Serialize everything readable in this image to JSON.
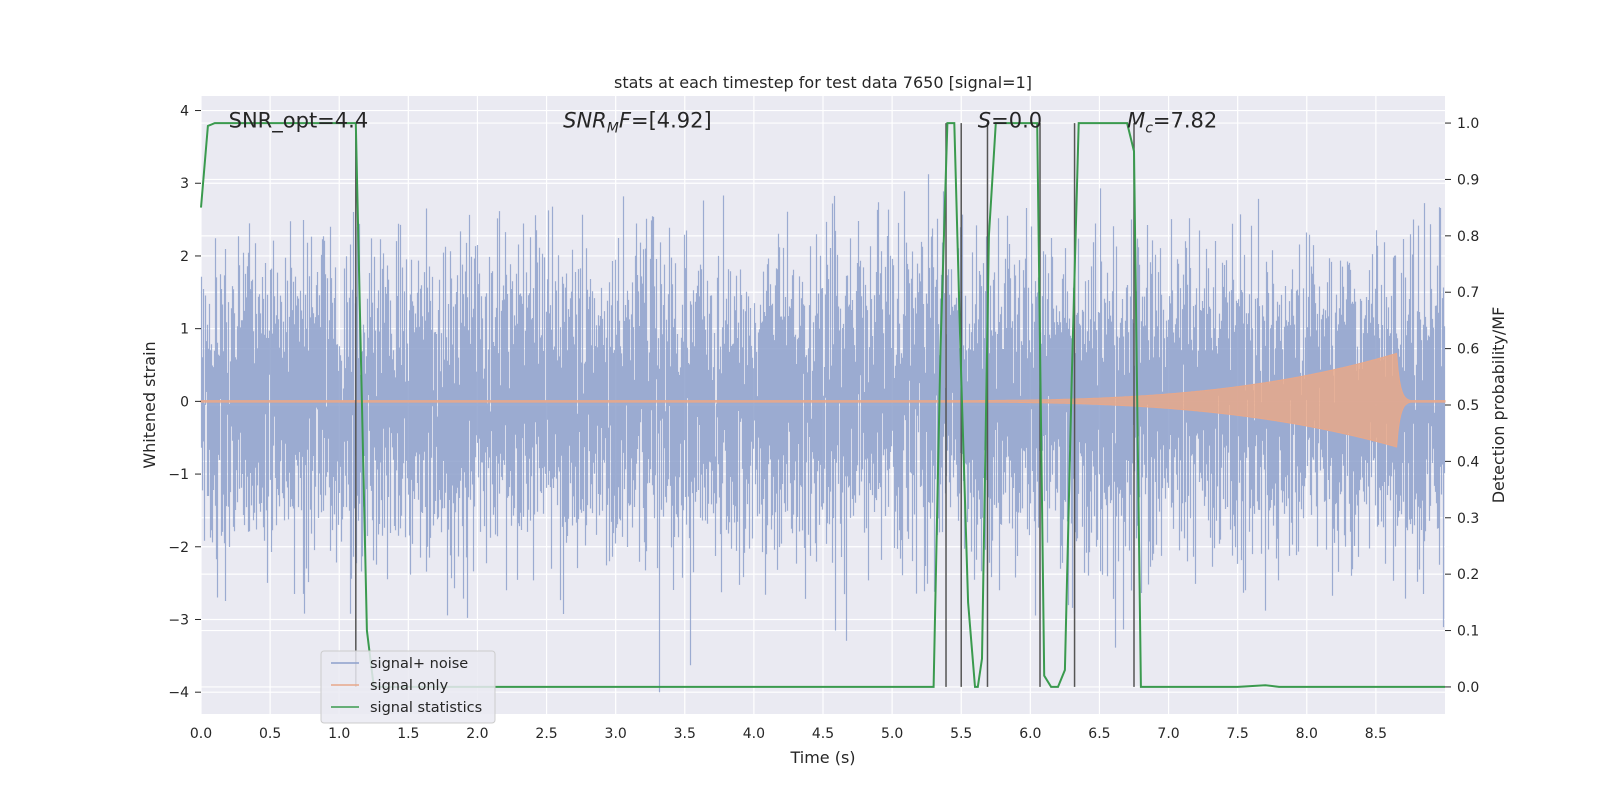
{
  "chart_data": {
    "type": "line",
    "title": "stats at each timestep for test data 7650 [signal=1]",
    "xlabel": "Time (s)",
    "ylabel_left": "Whitened strain",
    "ylabel_right": "Detection probability/MF",
    "xlim": [
      0.0,
      9.0
    ],
    "ylim_left": [
      -4.3,
      4.2
    ],
    "ylim_right": [
      -0.048,
      1.048
    ],
    "x_ticks": [
      0.0,
      0.5,
      1.0,
      1.5,
      2.0,
      2.5,
      3.0,
      3.5,
      4.0,
      4.5,
      5.0,
      5.5,
      6.0,
      6.5,
      7.0,
      7.5,
      8.0,
      8.5
    ],
    "x_tick_labels": [
      "0.0",
      "0.5",
      "1.0",
      "1.5",
      "2.0",
      "2.5",
      "3.0",
      "3.5",
      "4.0",
      "4.5",
      "5.0",
      "5.5",
      "6.0",
      "6.5",
      "7.0",
      "7.5",
      "8.0",
      "8.5"
    ],
    "y_left_ticks": [
      -4,
      -3,
      -2,
      -1,
      0,
      1,
      2,
      3,
      4
    ],
    "y_left_tick_labels": [
      "−4",
      "−3",
      "−2",
      "−1",
      "0",
      "1",
      "2",
      "3",
      "4"
    ],
    "y_right_ticks": [
      0.0,
      0.1,
      0.2,
      0.3,
      0.4,
      0.5,
      0.6,
      0.7,
      0.8,
      0.9,
      1.0
    ],
    "y_right_tick_labels": [
      "0.0",
      "0.1",
      "0.2",
      "0.3",
      "0.4",
      "0.5",
      "0.6",
      "0.7",
      "0.8",
      "0.9",
      "1.0"
    ],
    "grid": true,
    "legend_position": "bottom-left",
    "legend": [
      {
        "label": "signal+ noise",
        "color": "#8da0cb"
      },
      {
        "label": "signal only",
        "color": "#e8a88a"
      },
      {
        "label": "signal statistics",
        "color": "#3a9a4e"
      }
    ],
    "annotations": [
      {
        "id": "snr-opt",
        "text": "SNR_opt=4.4",
        "x": 0.2
      },
      {
        "id": "snr-mf",
        "text": "SNR_MF=[4.92]",
        "x": 2.62
      },
      {
        "id": "s-value",
        "text": "S=0.0",
        "x": 5.62
      },
      {
        "id": "chirp-mass",
        "text": "M_c=7.82",
        "x": 6.7
      }
    ],
    "annotation_y": 3.88,
    "noise": {
      "duration": 9.0,
      "sigma": 1.0,
      "seed": 7650
    },
    "signal_only": {
      "peak_time": 8.65,
      "peak_amplitude": 0.65,
      "onset_time": 5.2
    },
    "signal_statistics": {
      "x": [
        0.0,
        0.05,
        0.1,
        0.2,
        1.12,
        1.2,
        1.25,
        1.3,
        5.3,
        5.35,
        5.4,
        5.45,
        5.5,
        5.55,
        5.6,
        5.62,
        5.65,
        5.7,
        5.75,
        5.8,
        6.05,
        6.1,
        6.15,
        6.2,
        6.25,
        6.3,
        6.35,
        6.4,
        6.7,
        6.75,
        6.8,
        6.85,
        7.5,
        7.7,
        7.8,
        9.0
      ],
      "y": [
        0.85,
        0.995,
        1.0,
        1.0,
        1.0,
        0.1,
        0.0,
        0.0,
        0.0,
        0.6,
        1.0,
        1.0,
        0.55,
        0.15,
        0.0,
        0.0,
        0.05,
        0.8,
        1.0,
        1.0,
        1.0,
        0.02,
        0.0,
        0.0,
        0.03,
        0.55,
        1.0,
        1.0,
        1.0,
        0.95,
        0.0,
        0.0,
        0.0,
        0.003,
        0.0,
        0.0
      ]
    },
    "vertical_markers": [
      1.12,
      5.39,
      5.5,
      5.69,
      6.07,
      6.32,
      6.75
    ],
    "vertical_marker_range": [
      0.0,
      1.0
    ]
  }
}
